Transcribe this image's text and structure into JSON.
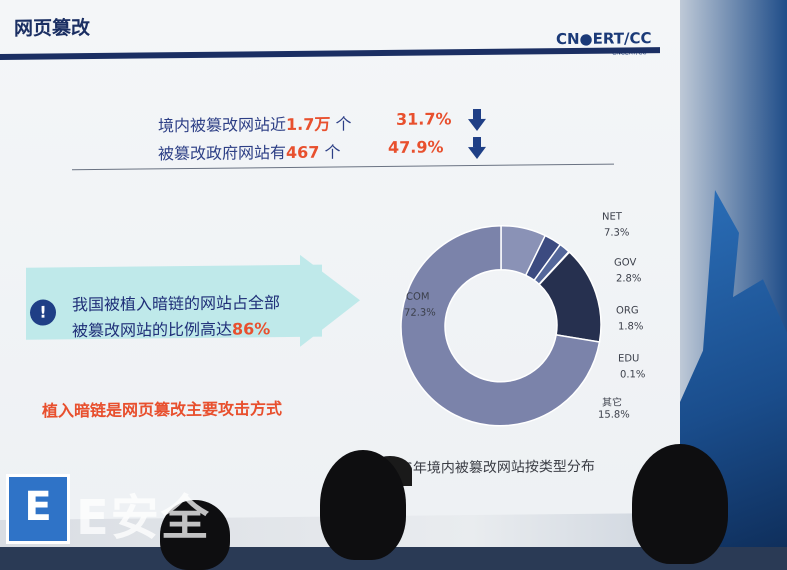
{
  "slide": {
    "title": "网页篡改",
    "brand": "CN●ERT/CC",
    "brand_sub": "CNCERT/CC"
  },
  "stats": [
    {
      "prefix": "境内被篡改网站近",
      "value": "1.7万",
      "unit": " 个",
      "percent": "31.7%",
      "trend": "down"
    },
    {
      "prefix": "被篡改政府网站有",
      "value": "467",
      "unit": " 个",
      "percent": "47.9%",
      "trend": "down"
    }
  ],
  "callout": {
    "icon": "exclamation-icon",
    "line1": "我国被植入暗链的网站占全部",
    "line2_prefix": "被篡改网站的比例高达",
    "line2_highlight": "86%"
  },
  "conclusion": "植入暗链是网页篡改主要攻击方式",
  "chart_data": {
    "type": "pie",
    "style": "donut",
    "caption": "6年境内被篡改网站按类型分布",
    "slices": [
      {
        "label": "COM",
        "value": 72.3,
        "display": "72.3%",
        "color": "#7b83aa"
      },
      {
        "label": "NET",
        "value": 7.3,
        "display": "7.3%",
        "color": "#8a92b6"
      },
      {
        "label": "GOV",
        "value": 2.8,
        "display": "2.8%",
        "color": "#3c4b80"
      },
      {
        "label": "ORG",
        "value": 1.8,
        "display": "1.8%",
        "color": "#54679a"
      },
      {
        "label": "EDU",
        "value": 0.1,
        "display": "0.1%",
        "color": "#2a3660"
      },
      {
        "label": "其它",
        "value": 15.8,
        "display": "15.8%",
        "color": "#26304f"
      }
    ]
  },
  "watermark": {
    "badge": "E",
    "text": "E安全"
  },
  "colors": {
    "title": "#1b2f63",
    "accent": "#e8502e",
    "callout_bg": "#bfe9ea"
  }
}
